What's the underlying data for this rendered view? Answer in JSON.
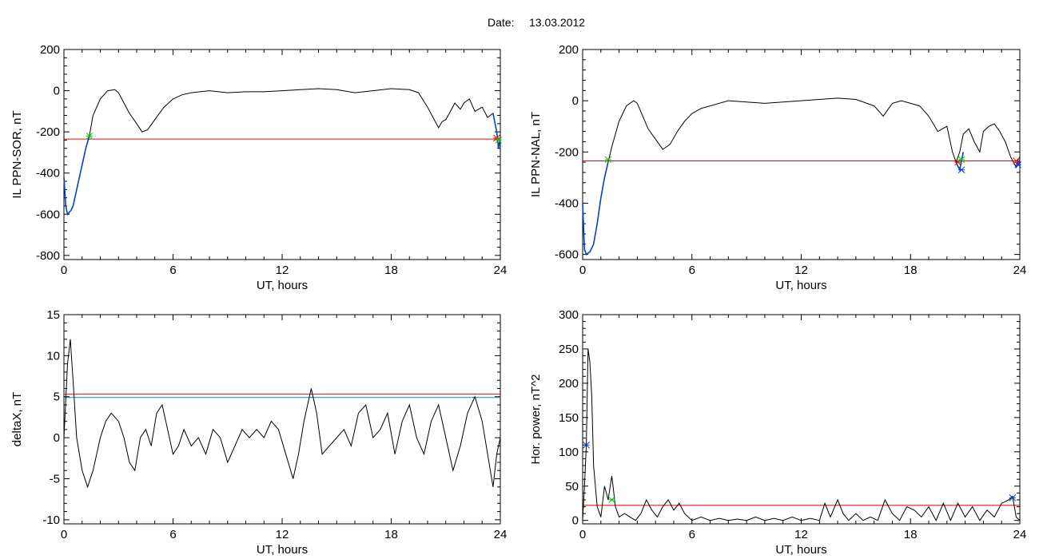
{
  "figure": {
    "date_label": "Date:",
    "date_value": "13.03.2012"
  },
  "chart_data": [
    {
      "type": "line",
      "panel": "top-left",
      "xlabel": "UT, hours",
      "ylabel": "IL PPN-SOR, nT",
      "xlim": [
        0,
        24
      ],
      "ylim": [
        -820,
        200
      ],
      "xticks": [
        0,
        6,
        12,
        18,
        24
      ],
      "yticks": [
        -800,
        -600,
        -400,
        -200,
        0,
        200
      ],
      "threshold_lines": [
        {
          "value": -235,
          "color": "#ff0000"
        }
      ],
      "series": [
        {
          "color": "#000000",
          "x": [
            0,
            0.1,
            0.2,
            0.3,
            0.4,
            0.5,
            0.6,
            0.8,
            1.0,
            1.2,
            1.4,
            1.6,
            2.0,
            2.4,
            2.8,
            3.0,
            3.3,
            3.6,
            4.0,
            4.3,
            4.6,
            5.0,
            5.5,
            6.0,
            6.5,
            7,
            8,
            9,
            10,
            11,
            12,
            13,
            14,
            15,
            16,
            17,
            18,
            19,
            19.5,
            20.0,
            20.3,
            20.6,
            20.8,
            21.0,
            21.2,
            21.5,
            21.8,
            22.0,
            22.3,
            22.6,
            23.0,
            23.3,
            23.6,
            23.8,
            23.9,
            24
          ],
          "y": [
            -420,
            -560,
            -600,
            -590,
            -580,
            -560,
            -520,
            -440,
            -360,
            -280,
            -220,
            -120,
            -40,
            0,
            5,
            -10,
            -60,
            -110,
            -160,
            -200,
            -190,
            -140,
            -80,
            -40,
            -20,
            -10,
            0,
            -10,
            -5,
            -5,
            0,
            5,
            10,
            5,
            -10,
            0,
            10,
            5,
            -10,
            -80,
            -130,
            -180,
            -150,
            -140,
            -110,
            -60,
            -90,
            -60,
            -40,
            -100,
            -80,
            -130,
            -110,
            -200,
            -280,
            -230
          ]
        },
        {
          "color": "#0044cc",
          "x": [
            0,
            0.1,
            0.2,
            0.3,
            0.4,
            0.5,
            0.6,
            0.8,
            1.0,
            1.2,
            1.4
          ],
          "y": [
            -420,
            -560,
            -600,
            -590,
            -580,
            -560,
            -520,
            -440,
            -360,
            -280,
            -220
          ]
        },
        {
          "color": "#0044cc",
          "x": [
            23.6,
            23.8,
            23.9,
            24
          ],
          "y": [
            -110,
            -200,
            -280,
            -230
          ]
        }
      ],
      "markers": [
        {
          "x": 1.4,
          "y": -220,
          "color": "#00cc00"
        },
        {
          "x": 23.8,
          "y": -230,
          "color": "#ff0000"
        },
        {
          "x": 23.9,
          "y": -240,
          "color": "#00cc00"
        }
      ]
    },
    {
      "type": "line",
      "panel": "top-right",
      "xlabel": "UT, hours",
      "ylabel": "IL PPN-NAL, nT",
      "xlim": [
        0,
        24
      ],
      "ylim": [
        -620,
        200
      ],
      "xticks": [
        0,
        6,
        12,
        18,
        24
      ],
      "yticks": [
        -600,
        -400,
        -200,
        0,
        200
      ],
      "threshold_lines": [
        {
          "value": -235,
          "color": "#ff0000"
        }
      ],
      "series": [
        {
          "color": "#000000",
          "x": [
            0,
            0.1,
            0.2,
            0.4,
            0.6,
            0.8,
            1.0,
            1.2,
            1.4,
            1.6,
            2.0,
            2.4,
            2.8,
            3.0,
            3.3,
            3.6,
            4.0,
            4.4,
            4.8,
            5.2,
            5.6,
            6.0,
            6.5,
            7,
            8,
            9,
            10,
            11,
            12,
            13,
            14,
            15,
            16,
            16.5,
            17,
            17.5,
            18,
            18.5,
            19.0,
            19.5,
            20.0,
            20.3,
            20.5,
            20.7,
            20.9,
            21.2,
            21.5,
            21.8,
            22.0,
            22.3,
            22.6,
            22.9,
            23.2,
            23.5,
            23.8,
            23.9,
            24
          ],
          "y": [
            -400,
            -580,
            -600,
            -590,
            -560,
            -480,
            -380,
            -300,
            -240,
            -180,
            -80,
            -20,
            0,
            -10,
            -60,
            -110,
            -150,
            -190,
            -170,
            -120,
            -80,
            -50,
            -30,
            -20,
            0,
            -5,
            -10,
            -5,
            0,
            5,
            10,
            5,
            -20,
            -60,
            -10,
            0,
            -10,
            -20,
            -60,
            -120,
            -100,
            -200,
            -240,
            -200,
            -130,
            -110,
            -160,
            -200,
            -120,
            -100,
            -90,
            -120,
            -160,
            -220,
            -260,
            -230,
            -220
          ]
        },
        {
          "color": "#0044cc",
          "x": [
            0,
            0.1,
            0.2,
            0.4,
            0.6,
            0.8,
            1.0,
            1.2,
            1.4
          ],
          "y": [
            -400,
            -580,
            -600,
            -590,
            -560,
            -480,
            -380,
            -300,
            -240
          ]
        },
        {
          "color": "#0044cc",
          "x": [
            20.5,
            20.7,
            20.9
          ],
          "y": [
            -240,
            -270,
            -200
          ]
        },
        {
          "color": "#0044cc",
          "x": [
            23.8,
            23.9,
            24
          ],
          "y": [
            -260,
            -250,
            -230
          ]
        }
      ],
      "markers": [
        {
          "x": 1.4,
          "y": -230,
          "color": "#00cc00"
        },
        {
          "x": 20.6,
          "y": -240,
          "color": "#ff0000"
        },
        {
          "x": 20.8,
          "y": -230,
          "color": "#00cc00"
        },
        {
          "x": 20.8,
          "y": -270,
          "color": "#0044cc"
        },
        {
          "x": 23.8,
          "y": -235,
          "color": "#ff0000"
        },
        {
          "x": 23.9,
          "y": -250,
          "color": "#0044cc"
        }
      ]
    },
    {
      "type": "line",
      "panel": "bottom-left",
      "xlabel": "UT, hours",
      "ylabel": "deltaX, nT",
      "xlim": [
        0,
        24
      ],
      "ylim": [
        -10.5,
        15
      ],
      "xticks": [
        0,
        6,
        12,
        18,
        24
      ],
      "yticks": [
        -10,
        -5,
        0,
        5,
        10,
        15
      ],
      "threshold_lines": [
        {
          "value": 5.3,
          "color": "#ff0000"
        },
        {
          "value": 4.9,
          "color": "#009999"
        }
      ],
      "series": [
        {
          "color": "#000000",
          "x": [
            0,
            0.2,
            0.35,
            0.5,
            0.7,
            1.0,
            1.3,
            1.6,
            2.0,
            2.3,
            2.6,
            3.0,
            3.3,
            3.6,
            3.9,
            4.2,
            4.5,
            4.8,
            5.1,
            5.4,
            5.7,
            6.0,
            6.3,
            6.6,
            7.0,
            7.4,
            7.8,
            8.2,
            8.6,
            9.0,
            9.4,
            9.8,
            10.2,
            10.6,
            11.0,
            11.4,
            11.8,
            12.2,
            12.6,
            12.9,
            13.2,
            13.6,
            13.9,
            14.2,
            14.6,
            15.0,
            15.4,
            15.8,
            16.2,
            16.6,
            17.0,
            17.4,
            17.8,
            18.2,
            18.6,
            19.0,
            19.4,
            19.8,
            20.2,
            20.6,
            21.0,
            21.4,
            21.8,
            22.2,
            22.6,
            23.0,
            23.3,
            23.6,
            23.8,
            24
          ],
          "y": [
            0,
            9,
            12,
            7,
            0,
            -4,
            -6,
            -4,
            0,
            2,
            3,
            2,
            0,
            -3,
            -4,
            0,
            1,
            -1,
            3,
            4,
            1,
            -2,
            -1,
            1,
            -1,
            0,
            -2,
            1,
            0,
            -3,
            -1,
            1,
            0,
            1,
            0,
            2,
            1,
            -2,
            -5,
            -2,
            2,
            6,
            3,
            -2,
            -1,
            0,
            1,
            -1,
            3,
            4,
            0,
            1,
            3,
            -2,
            2,
            4,
            0,
            -2,
            2,
            4,
            0,
            -4,
            -1,
            3,
            5,
            2,
            -2,
            -6,
            -2,
            0
          ]
        }
      ],
      "markers": []
    },
    {
      "type": "line",
      "panel": "bottom-right",
      "xlabel": "UT, hours",
      "ylabel": "Hor. power, nT^2",
      "xlim": [
        0,
        24
      ],
      "ylim": [
        -5,
        300
      ],
      "xticks": [
        0,
        6,
        12,
        18,
        24
      ],
      "yticks": [
        0,
        50,
        100,
        150,
        200,
        250,
        300
      ],
      "threshold_lines": [
        {
          "value": 22,
          "color": "#ff0000"
        }
      ],
      "series": [
        {
          "color": "#000000",
          "x": [
            0,
            0.1,
            0.2,
            0.3,
            0.4,
            0.5,
            0.6,
            0.8,
            1.0,
            1.2,
            1.4,
            1.6,
            1.8,
            2.0,
            2.3,
            2.6,
            2.9,
            3.2,
            3.5,
            3.8,
            4.1,
            4.4,
            4.7,
            5.0,
            5.3,
            5.6,
            6.0,
            6.5,
            7,
            7.5,
            8,
            8.5,
            9,
            9.5,
            10,
            10.5,
            11,
            11.5,
            12,
            12.5,
            13,
            13.3,
            13.6,
            14.0,
            14.3,
            14.6,
            15.0,
            15.4,
            15.8,
            16.2,
            16.6,
            17.0,
            17.4,
            17.8,
            18.2,
            18.6,
            19.0,
            19.4,
            19.8,
            20.2,
            20.6,
            21.0,
            21.4,
            21.8,
            22.2,
            22.6,
            23.0,
            23.4,
            23.6,
            23.8,
            24
          ],
          "y": [
            0,
            50,
            110,
            250,
            230,
            180,
            80,
            20,
            5,
            50,
            30,
            65,
            20,
            5,
            10,
            5,
            0,
            10,
            30,
            15,
            5,
            20,
            30,
            15,
            25,
            10,
            0,
            5,
            0,
            3,
            0,
            2,
            0,
            5,
            0,
            3,
            0,
            5,
            0,
            3,
            0,
            25,
            5,
            30,
            10,
            0,
            10,
            0,
            5,
            0,
            30,
            10,
            0,
            20,
            15,
            5,
            20,
            0,
            25,
            0,
            25,
            5,
            20,
            0,
            15,
            5,
            25,
            30,
            35,
            5,
            0
          ]
        }
      ],
      "markers": [
        {
          "x": 0.2,
          "y": 110,
          "color": "#0044cc"
        },
        {
          "x": 1.6,
          "y": 30,
          "color": "#00cc00"
        },
        {
          "x": 23.6,
          "y": 33,
          "color": "#0044cc"
        }
      ]
    }
  ]
}
